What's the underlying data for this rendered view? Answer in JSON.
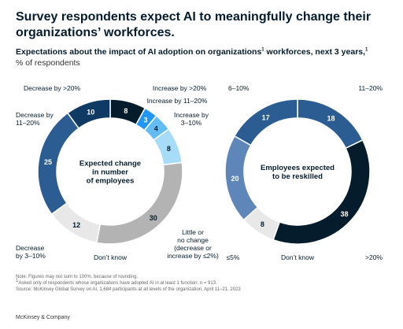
{
  "headline": "Survey respondents expect AI to meaningfully change their organizations’ workforces.",
  "subtitle": {
    "text_a": "Expectations about the impact of AI adoption on organizations",
    "sup_a": "1",
    "text_b": " workforces, next 3 years,",
    "sup_b": "1"
  },
  "units": "% of respondents",
  "colors": {
    "navy": "#051c2c",
    "dark_blue": "#0f3a64",
    "mid_blue": "#2c5d92",
    "light_mid_blue": "#5f86b8",
    "bright_blue": "#2196f3",
    "sky_blue": "#64bcf5",
    "pale_blue": "#a6dcf7",
    "gray": "#b3b3b3",
    "light_gray": "#e8e8e8"
  },
  "chart_data": [
    {
      "type": "donut",
      "center_label": [
        "Expected change",
        "in number",
        "of employees"
      ],
      "slices": [
        {
          "label": "Decrease by >20%",
          "value": 8,
          "color": "#051c2c"
        },
        {
          "label": "Increase by >20%",
          "value": 3,
          "color": "#2196f3"
        },
        {
          "label": "Increase by 11–20%",
          "value": 4,
          "color": "#64bcf5"
        },
        {
          "label": "Increase by 3–10%",
          "value": 8,
          "color": "#a6dcf7"
        },
        {
          "label": "Little or no change (decrease or increase by ≤2%)",
          "value": 30,
          "color": "#b3b3b3"
        },
        {
          "label": "Don’t know",
          "value": 12,
          "color": "#e8e8e8"
        },
        {
          "label": "Decrease by 3–10%",
          "value": 25,
          "color": "#2c5d92"
        },
        {
          "label": "Decrease by 11–20%",
          "value": 10,
          "color": "#0f3a64"
        }
      ]
    },
    {
      "type": "donut",
      "center_label": [
        "Employees expected",
        "to be reskilled"
      ],
      "slices": [
        {
          "label": "11–20%",
          "value": 18,
          "color": "#2c5d92"
        },
        {
          "label": ">20%",
          "value": 38,
          "color": "#051c2c"
        },
        {
          "label": "Don’t know",
          "value": 8,
          "color": "#e8e8e8"
        },
        {
          "label": "≤5%",
          "value": 20,
          "color": "#5f86b8"
        },
        {
          "label": "6–10%",
          "value": 17,
          "color": "#2c5d92"
        }
      ]
    }
  ],
  "notes": [
    "Note: Figures may not sum to 100%, because of rounding.",
    "Asked only of respondents whose organizations have adopted AI in at least 1 function; n = 913.",
    "Source: McKinsey Global Survey on AI, 1,684 participants at all levels of the organization, April 11–21, 2023"
  ],
  "note_sup": "1",
  "brand": "McKinsey & Company"
}
